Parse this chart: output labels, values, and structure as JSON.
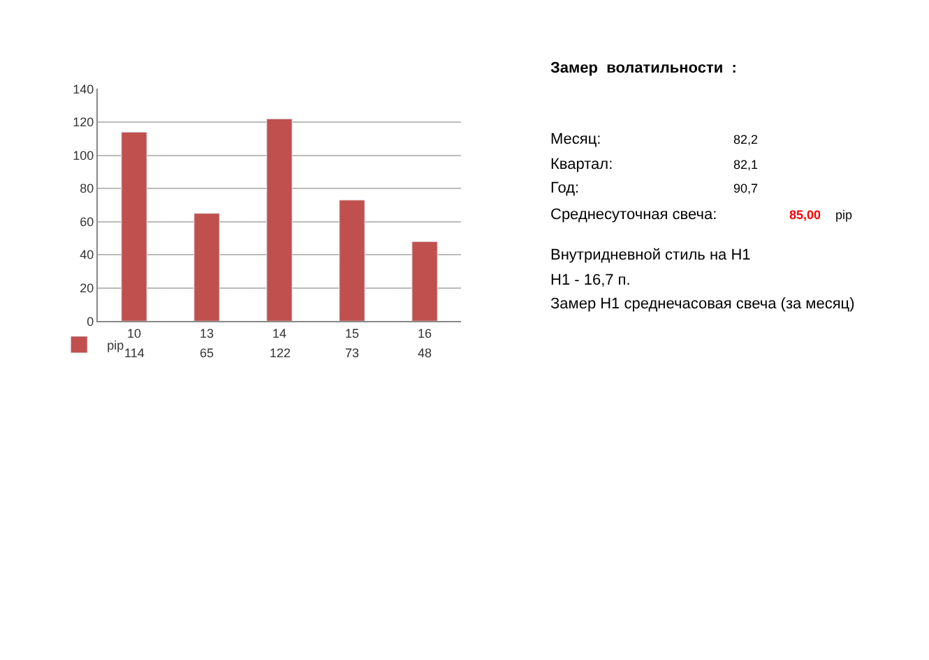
{
  "chart_data": {
    "type": "bar",
    "categories": [
      "10",
      "13",
      "14",
      "15",
      "16"
    ],
    "series": [
      {
        "name": "pip",
        "color": "#c0504d",
        "values": [
          114,
          65,
          122,
          73,
          48
        ]
      }
    ],
    "ylim": [
      0,
      140
    ],
    "yticks": [
      0,
      20,
      40,
      60,
      80,
      100,
      120,
      140
    ],
    "grid": "y",
    "legend": "bottom left",
    "data_labels": true,
    "annotations": [
      "Замер  волатильности  :",
      "Месяц:",
      "82,2",
      "Квартал:",
      "82,1",
      "Год:",
      "90,7",
      "Среднесуточная свеча:",
      "85,00",
      "pip",
      "Внутридневной стиль на H1",
      "H1 - 16,7 п.",
      "Замер H1 среднечасовая свеча (за месяц)"
    ]
  }
}
